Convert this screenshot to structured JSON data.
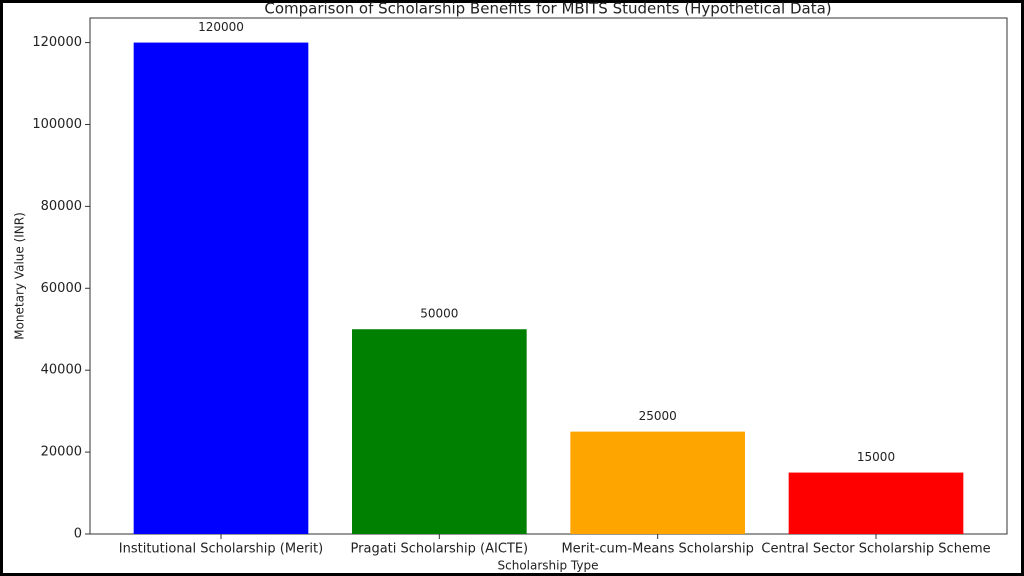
{
  "chart_data": {
    "type": "bar",
    "title": "Comparison of Scholarship Benefits for MBITS Students (Hypothetical Data)",
    "xlabel": "Scholarship Type",
    "ylabel": "Monetary Value (INR)",
    "categories": [
      "Institutional Scholarship (Merit)",
      "Pragati Scholarship (AICTE)",
      "Merit-cum-Means Scholarship",
      "Central Sector Scholarship Scheme"
    ],
    "values": [
      120000,
      50000,
      25000,
      15000
    ],
    "colors": [
      "#0000ff",
      "#008000",
      "#ffa500",
      "#ff0000"
    ],
    "ylim": [
      0,
      126000
    ],
    "yticks": [
      0,
      20000,
      40000,
      60000,
      80000,
      100000,
      120000
    ],
    "grid": false
  }
}
